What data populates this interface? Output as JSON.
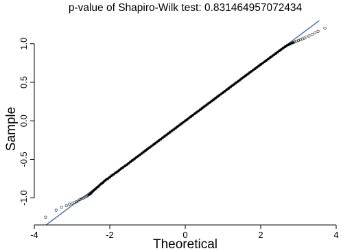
{
  "chart_data": {
    "type": "scatter",
    "title": "p-value of Shapiro-Wilk test: 0.831464957072434",
    "xlabel": "Theoretical",
    "ylabel": "Sample",
    "x_ticks": [
      -4,
      -2,
      0,
      2,
      4
    ],
    "y_ticks": [
      -1.0,
      -0.5,
      0.0,
      0.5,
      1.0
    ],
    "x_tick_labels": [
      "-4",
      "-2",
      "0",
      "2",
      "4"
    ],
    "y_tick_labels": [
      "-1.0",
      "-0.5",
      "0.0",
      "0.5",
      "1.0"
    ],
    "xlim": [
      -4,
      4
    ],
    "ylim": [
      -1.35,
      1.3
    ],
    "grid": false,
    "reference_line": {
      "intercept": 0.0,
      "slope": 0.366,
      "color": "#3b6ea8"
    },
    "point_color": "#000000",
    "points": [
      [
        -3.7,
        -1.25
      ],
      [
        -3.42,
        -1.16
      ],
      [
        -3.28,
        -1.12
      ],
      [
        -3.15,
        -1.1
      ],
      [
        -3.07,
        -1.08
      ],
      [
        -3.0,
        -1.07
      ],
      [
        -2.94,
        -1.06
      ],
      [
        -2.89,
        -1.05
      ],
      [
        -2.84,
        -1.04
      ],
      [
        -2.79,
        -1.02
      ],
      [
        -2.74,
        -1.01
      ],
      [
        -2.7,
        -1.0
      ],
      [
        -2.66,
        -0.99
      ],
      [
        -2.62,
        -0.98
      ],
      [
        -2.58,
        -0.97
      ],
      [
        -2.54,
        -0.955
      ],
      [
        -2.5,
        -0.94
      ],
      [
        -2.46,
        -0.92
      ],
      [
        -2.42,
        -0.9
      ],
      [
        -2.38,
        -0.885
      ],
      [
        -2.34,
        -0.865
      ],
      [
        -2.3,
        -0.85
      ],
      [
        -2.26,
        -0.83
      ],
      [
        -2.22,
        -0.815
      ],
      [
        -2.18,
        -0.8
      ],
      [
        -2.14,
        -0.78
      ],
      [
        -2.1,
        -0.765
      ],
      [
        -2.05,
        -0.75
      ],
      [
        -2.0,
        -0.73
      ],
      [
        -1.95,
        -0.71
      ],
      [
        -1.9,
        -0.695
      ],
      [
        -1.85,
        -0.675
      ],
      [
        -1.8,
        -0.66
      ],
      [
        -1.75,
        -0.64
      ],
      [
        -1.7,
        -0.62
      ],
      [
        -1.65,
        -0.605
      ],
      [
        -1.6,
        -0.585
      ],
      [
        -1.55,
        -0.57
      ],
      [
        -1.5,
        -0.55
      ],
      [
        -1.45,
        -0.53
      ],
      [
        -1.4,
        -0.512
      ],
      [
        -1.35,
        -0.495
      ],
      [
        -1.3,
        -0.476
      ],
      [
        -1.25,
        -0.458
      ],
      [
        -1.2,
        -0.44
      ],
      [
        -1.15,
        -0.421
      ],
      [
        -1.1,
        -0.403
      ],
      [
        -1.05,
        -0.384
      ],
      [
        -1.0,
        -0.366
      ],
      [
        -0.95,
        -0.348
      ],
      [
        -0.9,
        -0.33
      ],
      [
        -0.85,
        -0.311
      ],
      [
        -0.8,
        -0.293
      ],
      [
        -0.75,
        -0.275
      ],
      [
        -0.7,
        -0.256
      ],
      [
        -0.65,
        -0.238
      ],
      [
        -0.6,
        -0.22
      ],
      [
        -0.55,
        -0.201
      ],
      [
        -0.5,
        -0.183
      ],
      [
        -0.45,
        -0.165
      ],
      [
        -0.4,
        -0.146
      ],
      [
        -0.35,
        -0.128
      ],
      [
        -0.3,
        -0.11
      ],
      [
        -0.25,
        -0.092
      ],
      [
        -0.2,
        -0.073
      ],
      [
        -0.15,
        -0.055
      ],
      [
        -0.1,
        -0.037
      ],
      [
        -0.05,
        -0.018
      ],
      [
        0.0,
        0.0
      ],
      [
        0.05,
        0.018
      ],
      [
        0.1,
        0.037
      ],
      [
        0.15,
        0.055
      ],
      [
        0.2,
        0.073
      ],
      [
        0.25,
        0.092
      ],
      [
        0.3,
        0.11
      ],
      [
        0.35,
        0.128
      ],
      [
        0.4,
        0.146
      ],
      [
        0.45,
        0.165
      ],
      [
        0.5,
        0.183
      ],
      [
        0.55,
        0.201
      ],
      [
        0.6,
        0.22
      ],
      [
        0.65,
        0.238
      ],
      [
        0.7,
        0.256
      ],
      [
        0.75,
        0.275
      ],
      [
        0.8,
        0.293
      ],
      [
        0.85,
        0.311
      ],
      [
        0.9,
        0.33
      ],
      [
        0.95,
        0.348
      ],
      [
        1.0,
        0.366
      ],
      [
        1.05,
        0.384
      ],
      [
        1.1,
        0.403
      ],
      [
        1.15,
        0.421
      ],
      [
        1.2,
        0.44
      ],
      [
        1.25,
        0.458
      ],
      [
        1.3,
        0.476
      ],
      [
        1.35,
        0.495
      ],
      [
        1.4,
        0.512
      ],
      [
        1.45,
        0.53
      ],
      [
        1.5,
        0.55
      ],
      [
        1.55,
        0.568
      ],
      [
        1.6,
        0.586
      ],
      [
        1.65,
        0.604
      ],
      [
        1.7,
        0.622
      ],
      [
        1.75,
        0.64
      ],
      [
        1.8,
        0.658
      ],
      [
        1.85,
        0.676
      ],
      [
        1.9,
        0.694
      ],
      [
        1.95,
        0.712
      ],
      [
        2.0,
        0.73
      ],
      [
        2.05,
        0.748
      ],
      [
        2.1,
        0.766
      ],
      [
        2.15,
        0.784
      ],
      [
        2.2,
        0.802
      ],
      [
        2.25,
        0.82
      ],
      [
        2.3,
        0.838
      ],
      [
        2.35,
        0.856
      ],
      [
        2.4,
        0.874
      ],
      [
        2.45,
        0.892
      ],
      [
        2.5,
        0.91
      ],
      [
        2.55,
        0.928
      ],
      [
        2.6,
        0.946
      ],
      [
        2.65,
        0.962
      ],
      [
        2.7,
        0.978
      ],
      [
        2.75,
        0.99
      ],
      [
        2.8,
        1.002
      ],
      [
        2.85,
        1.012
      ],
      [
        2.9,
        1.022
      ],
      [
        2.95,
        1.032
      ],
      [
        3.0,
        1.042
      ],
      [
        3.05,
        1.052
      ],
      [
        3.1,
        1.062
      ],
      [
        3.15,
        1.072
      ],
      [
        3.2,
        1.085
      ],
      [
        3.28,
        1.1
      ],
      [
        3.36,
        1.12
      ],
      [
        3.44,
        1.14
      ],
      [
        3.52,
        1.16
      ],
      [
        3.7,
        1.2
      ]
    ]
  }
}
